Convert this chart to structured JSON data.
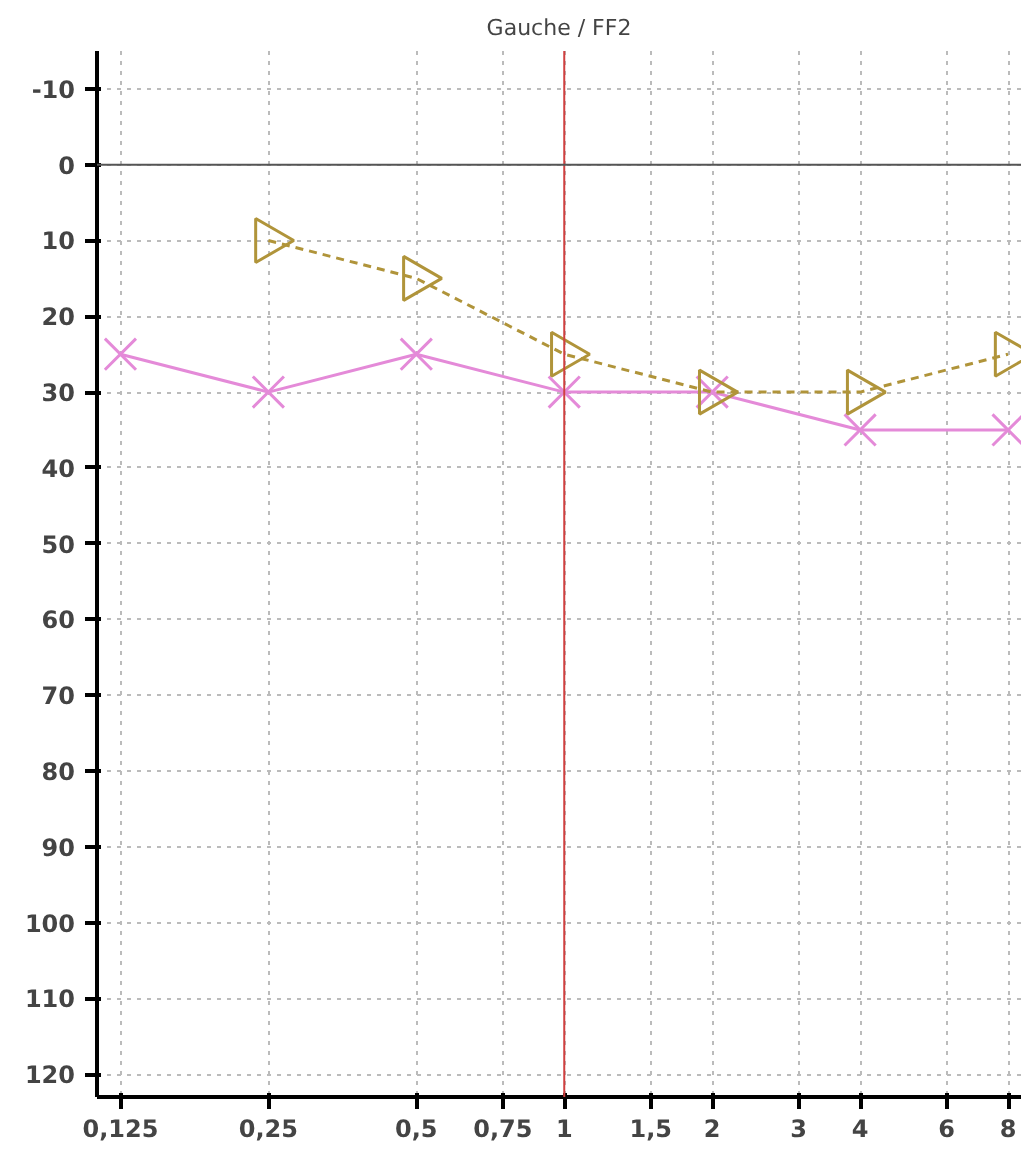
{
  "chart_data": {
    "type": "line",
    "title": "Gauche / FF2",
    "x": [
      0.125,
      0.25,
      0.5,
      1,
      2,
      4,
      8
    ],
    "series": [
      {
        "color": "#e48ad8",
        "values": [
          25,
          30,
          25,
          30,
          30,
          35,
          35
        ],
        "marker": "cross",
        "line_style": "solid"
      },
      {
        "color": "#b0943a",
        "values": [
          null,
          10,
          15,
          25,
          30,
          30,
          25
        ],
        "marker": "triangle",
        "line_style": "dashed"
      }
    ],
    "log": "x",
    "xlim": [
      0.112,
      8.5
    ],
    "ylim": [
      123,
      -15
    ],
    "xticks": [
      {
        "value": 0.125,
        "label": "0,125"
      },
      {
        "value": 0.25,
        "label": "0,25"
      },
      {
        "value": 0.5,
        "label": "0,5"
      },
      {
        "value": 0.75,
        "label": "0,75"
      },
      1,
      {
        "value": 1.5,
        "label": "1,5"
      },
      2,
      3,
      4,
      6,
      8
    ],
    "yticks": [
      -10,
      0,
      10,
      20,
      30,
      40,
      50,
      60,
      70,
      80,
      90,
      100,
      110,
      120
    ],
    "ref_lines": [
      {
        "axis": "x",
        "value": 1,
        "color": "#d04040"
      },
      {
        "axis": "y",
        "value": 0,
        "color": "#555555"
      }
    ],
    "grid": true
  }
}
